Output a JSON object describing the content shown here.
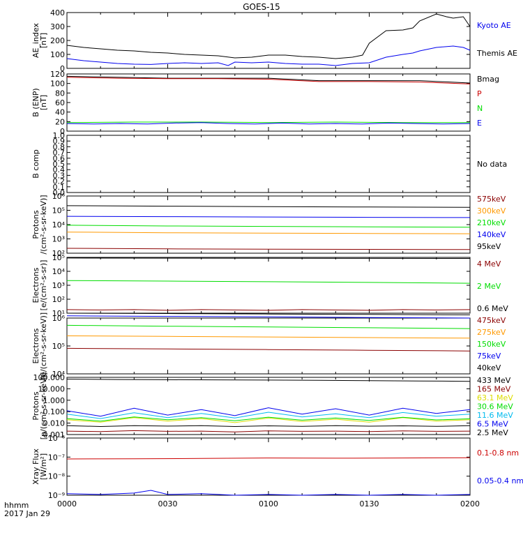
{
  "title": "GOES-15",
  "footer": {
    "time_label": "hhmm",
    "date_label": "2017 Jan 29"
  },
  "x_axis": {
    "min_min": 0,
    "max_min": 120,
    "ticks": [
      {
        "min": 0,
        "label": "0000"
      },
      {
        "min": 30,
        "label": "0030"
      },
      {
        "min": 60,
        "label": "0100"
      },
      {
        "min": 90,
        "label": "0130"
      },
      {
        "min": 120,
        "label": "0200"
      }
    ]
  },
  "colors": {
    "black": "#000000",
    "red": "#cc0000",
    "darkred": "#8b0000",
    "green": "#00dd00",
    "blue": "#0000ee",
    "orange": "#ff9900",
    "yellow": "#dddd00",
    "cyan": "#00bbee",
    "purple": "#8800aa"
  },
  "chart_data": [
    {
      "type": "line",
      "id": "ae",
      "ylabel": [
        "AE_index",
        "[nT]"
      ],
      "scale": "linear",
      "ylim": [
        0,
        400
      ],
      "yticks": [
        {
          "v": 0,
          "label": "0"
        },
        {
          "v": 100,
          "label": "100"
        },
        {
          "v": 200,
          "label": "200"
        },
        {
          "v": 300,
          "label": "300"
        },
        {
          "v": 400,
          "label": "400"
        }
      ],
      "series": [
        {
          "name": "Kyoto AE",
          "color": "#0000ee",
          "x": [
            0,
            5,
            10,
            15,
            20,
            25,
            30,
            35,
            40,
            45,
            48,
            50,
            55,
            60,
            65,
            70,
            75,
            80,
            85,
            90,
            95,
            100,
            103,
            105,
            110,
            115,
            118,
            120
          ],
          "y": [
            70,
            55,
            45,
            35,
            30,
            28,
            35,
            40,
            35,
            40,
            20,
            45,
            40,
            45,
            35,
            30,
            30,
            20,
            35,
            40,
            80,
            100,
            110,
            125,
            150,
            160,
            150,
            130
          ]
        },
        {
          "name": "Themis AE",
          "color": "#000000",
          "x": [
            0,
            5,
            10,
            15,
            20,
            25,
            30,
            35,
            40,
            45,
            50,
            55,
            60,
            65,
            70,
            75,
            80,
            85,
            88,
            90,
            95,
            100,
            103,
            105,
            110,
            113,
            115,
            118,
            120
          ],
          "y": [
            165,
            150,
            140,
            130,
            125,
            115,
            110,
            100,
            95,
            90,
            75,
            80,
            95,
            95,
            85,
            80,
            70,
            80,
            95,
            180,
            270,
            275,
            290,
            340,
            390,
            370,
            360,
            370,
            300
          ]
        }
      ]
    },
    {
      "type": "line",
      "id": "b_enp",
      "ylabel": [
        "B (ENP)",
        "[nT]"
      ],
      "scale": "linear",
      "ylim": [
        0,
        120
      ],
      "yticks": [
        {
          "v": 0,
          "label": "0"
        },
        {
          "v": 20,
          "label": "20"
        },
        {
          "v": 40,
          "label": "40"
        },
        {
          "v": 60,
          "label": "60"
        },
        {
          "v": 80,
          "label": "80"
        },
        {
          "v": 100,
          "label": "100"
        },
        {
          "v": 120,
          "label": "120"
        }
      ],
      "series": [
        {
          "name": "Bmag",
          "color": "#000000",
          "x": [
            0,
            15,
            30,
            45,
            60,
            75,
            90,
            105,
            120
          ],
          "y": [
            115,
            113,
            111,
            111,
            111,
            106,
            106,
            106,
            101
          ]
        },
        {
          "name": "P",
          "color": "#cc0000",
          "x": [
            0,
            15,
            30,
            45,
            60,
            75,
            90,
            105,
            120
          ],
          "y": [
            113,
            111,
            110,
            110,
            109,
            104,
            104,
            103,
            99
          ]
        },
        {
          "name": "N",
          "color": "#00dd00",
          "x": [
            0,
            20,
            40,
            60,
            80,
            100,
            120
          ],
          "y": [
            18,
            19,
            19,
            18,
            19,
            18,
            18
          ]
        },
        {
          "name": "E",
          "color": "#0000ee",
          "x": [
            0,
            8,
            16,
            24,
            32,
            40,
            48,
            56,
            64,
            72,
            80,
            88,
            96,
            104,
            112,
            120
          ],
          "y": [
            16,
            15,
            16,
            15,
            17,
            18,
            16,
            15,
            17,
            15,
            16,
            15,
            17,
            16,
            15,
            16
          ]
        }
      ]
    },
    {
      "type": "line",
      "id": "b_comp",
      "ylabel": [
        "B comp"
      ],
      "scale": "linear",
      "ylim": [
        0,
        1
      ],
      "yticks": [
        {
          "v": 0,
          "label": "0.0"
        },
        {
          "v": 0.1,
          "label": "0.1"
        },
        {
          "v": 0.2,
          "label": "0.2"
        },
        {
          "v": 0.3,
          "label": "0.3"
        },
        {
          "v": 0.4,
          "label": "0.4"
        },
        {
          "v": 0.5,
          "label": "0.5"
        },
        {
          "v": 0.6,
          "label": "0.6"
        },
        {
          "v": 0.7,
          "label": "0.7"
        },
        {
          "v": 0.8,
          "label": "0.8"
        },
        {
          "v": 0.9,
          "label": "0.9"
        },
        {
          "v": 1,
          "label": "1.0"
        }
      ],
      "no_data": "No data",
      "series": []
    },
    {
      "type": "line",
      "id": "protons_kev",
      "ylabel": [
        "Protons",
        "/(cm²-s-sr-keV)]"
      ],
      "scale": "log",
      "ylim": [
        100,
        1000000
      ],
      "yticks": [
        {
          "v": 100,
          "label": "10²"
        },
        {
          "v": 1000,
          "label": "10³"
        },
        {
          "v": 10000,
          "label": "10⁴"
        },
        {
          "v": 100000,
          "label": "10⁵"
        },
        {
          "v": 1000000,
          "label": "10⁶"
        }
      ],
      "series": [
        {
          "name": "575keV",
          "color": "#8b0000",
          "x": [
            0,
            30,
            60,
            90,
            120
          ],
          "y": [
            220,
            200,
            190,
            185,
            180
          ]
        },
        {
          "name": "300keV",
          "color": "#ff9900",
          "x": [
            0,
            30,
            60,
            90,
            120
          ],
          "y": [
            3000,
            2700,
            2500,
            2400,
            2300
          ]
        },
        {
          "name": "210keV",
          "color": "#00dd00",
          "x": [
            0,
            30,
            60,
            90,
            120
          ],
          "y": [
            9000,
            8000,
            7500,
            7000,
            6500
          ]
        },
        {
          "name": "140keV",
          "color": "#0000ee",
          "x": [
            0,
            30,
            60,
            90,
            120
          ],
          "y": [
            38000,
            36000,
            34000,
            32000,
            31000
          ]
        },
        {
          "name": "95keV",
          "color": "#000000",
          "x": [
            0,
            30,
            60,
            90,
            120
          ],
          "y": [
            210000,
            195000,
            180000,
            170000,
            160000
          ]
        }
      ]
    },
    {
      "type": "line",
      "id": "electrons_mev",
      "ylabel": [
        "Electrons",
        "[e/(cm²-s-sr)]"
      ],
      "scale": "log",
      "ylim": [
        10,
        100000
      ],
      "yticks": [
        {
          "v": 10,
          "label": "10¹"
        },
        {
          "v": 100,
          "label": "10²"
        },
        {
          "v": 1000,
          "label": "10³"
        },
        {
          "v": 10000,
          "label": "10⁴"
        },
        {
          "v": 100000,
          "label": "10⁵"
        }
      ],
      "series": [
        {
          "name": "4 MeV",
          "color": "#8b0000",
          "x": [
            0,
            10,
            20,
            30,
            40,
            50,
            60,
            70,
            80,
            90,
            100,
            110,
            120
          ],
          "y": [
            18,
            17,
            18,
            16,
            18,
            17,
            16,
            18,
            17,
            16,
            18,
            17,
            18
          ]
        },
        {
          "name": "2 MeV",
          "color": "#00dd00",
          "x": [
            0,
            30,
            60,
            90,
            120
          ],
          "y": [
            2200,
            2000,
            1800,
            1600,
            1400
          ]
        },
        {
          "name": "0.6 MeV",
          "color": "#000000",
          "x": [
            0,
            30,
            60,
            90,
            120
          ],
          "y": [
            90000,
            88000,
            86000,
            85000,
            84000
          ]
        }
      ]
    },
    {
      "type": "line",
      "id": "electrons_kev",
      "ylabel": [
        "Electrons",
        "[e/(cm²-s-sr-keV)]"
      ],
      "scale": "log",
      "ylim": [
        10000,
        1000000
      ],
      "yticks": [
        {
          "v": 10000,
          "label": "10⁴"
        },
        {
          "v": 100000,
          "label": "10⁵"
        },
        {
          "v": 1000000,
          "label": "10⁶"
        }
      ],
      "series": [
        {
          "name": "475keV",
          "color": "#8b0000",
          "x": [
            0,
            30,
            60,
            90,
            120
          ],
          "y": [
            82000,
            78000,
            74000,
            70000,
            66000
          ]
        },
        {
          "name": "275keV",
          "color": "#ff9900",
          "x": [
            0,
            30,
            60,
            90,
            120
          ],
          "y": [
            230000,
            220000,
            210000,
            200000,
            190000
          ]
        },
        {
          "name": "150keV",
          "color": "#00dd00",
          "x": [
            0,
            30,
            60,
            90,
            120
          ],
          "y": [
            550000,
            510000,
            480000,
            450000,
            420000
          ]
        },
        {
          "name": "75keV",
          "color": "#0000ee",
          "x": [
            0,
            30,
            60,
            90,
            120
          ],
          "y": [
            1200000,
            1150000,
            1100000,
            1050000,
            1000000
          ]
        },
        {
          "name": "40keV",
          "color": "#000000",
          "x": [
            0,
            30,
            60,
            90,
            120
          ],
          "y": [
            1500000,
            1450000,
            1400000,
            1350000,
            1300000
          ]
        }
      ]
    },
    {
      "type": "line",
      "id": "protons_mev",
      "ylabel": [
        "Protons",
        "[p/(cm²-s-sr-keV)]"
      ],
      "scale": "log",
      "ylim": [
        0.001,
        100
      ],
      "yticks": [
        {
          "v": 0.001,
          "label": "0.001"
        },
        {
          "v": 0.01,
          "label": "0.010"
        },
        {
          "v": 0.1,
          "label": "0.100"
        },
        {
          "v": 1,
          "label": "1.000"
        },
        {
          "v": 10,
          "label": "10.000"
        },
        {
          "v": 100,
          "label": "100.000"
        }
      ],
      "series": [
        {
          "name": "433 MeV",
          "color": "#000000",
          "x": [
            0,
            15,
            30,
            45,
            60,
            75,
            90,
            105,
            120
          ],
          "y": [
            70,
            65,
            62,
            60,
            58,
            55,
            52,
            48,
            45
          ]
        },
        {
          "name": "165 MeV",
          "color": "#8b0000",
          "x": [
            0,
            10,
            20,
            30,
            40,
            50,
            60,
            70,
            80,
            90,
            100,
            110,
            120
          ],
          "y": [
            0.002,
            0.0018,
            0.0022,
            0.0019,
            0.002,
            0.0017,
            0.0021,
            0.0019,
            0.002,
            0.0018,
            0.0021,
            0.0019,
            0.002
          ]
        },
        {
          "name": "63.1 MeV",
          "color": "#dddd00",
          "x": [
            0,
            10,
            20,
            30,
            40,
            50,
            60,
            70,
            80,
            90,
            100,
            110,
            120
          ],
          "y": [
            0.02,
            0.012,
            0.03,
            0.015,
            0.025,
            0.011,
            0.028,
            0.014,
            0.022,
            0.012,
            0.03,
            0.015,
            0.02
          ]
        },
        {
          "name": "30.6 MeV",
          "color": "#00dd00",
          "x": [
            0,
            10,
            20,
            30,
            40,
            50,
            60,
            70,
            80,
            90,
            100,
            110,
            120
          ],
          "y": [
            0.025,
            0.015,
            0.035,
            0.02,
            0.03,
            0.016,
            0.033,
            0.018,
            0.028,
            0.017,
            0.032,
            0.019,
            0.024
          ]
        },
        {
          "name": "11.6 MeV",
          "color": "#00bbee",
          "x": [
            0,
            10,
            20,
            30,
            40,
            50,
            60,
            70,
            80,
            90,
            100,
            110,
            120
          ],
          "y": [
            0.06,
            0.025,
            0.08,
            0.03,
            0.07,
            0.028,
            0.09,
            0.035,
            0.065,
            0.03,
            0.085,
            0.04,
            0.06
          ]
        },
        {
          "name": "6.5 MeV",
          "color": "#0000ee",
          "x": [
            0,
            10,
            20,
            30,
            40,
            50,
            60,
            70,
            80,
            90,
            100,
            110,
            120
          ],
          "y": [
            0.12,
            0.04,
            0.2,
            0.05,
            0.15,
            0.045,
            0.22,
            0.06,
            0.18,
            0.05,
            0.2,
            0.07,
            0.15
          ]
        },
        {
          "name": "2.5 MeV",
          "color": "#000000",
          "x": [
            0,
            10,
            20,
            30,
            40,
            50,
            60,
            70,
            80,
            90,
            100,
            110,
            120
          ],
          "y": [
            0.006,
            0.005,
            0.006,
            0.0055,
            0.006,
            0.005,
            0.0058,
            0.0052,
            0.006,
            0.0054,
            0.0058,
            0.0052,
            0.006
          ]
        }
      ]
    },
    {
      "type": "line",
      "id": "xray",
      "ylabel": [
        "Xray Flux",
        "[W/m²]"
      ],
      "scale": "log",
      "ylim": [
        1e-09,
        1e-06
      ],
      "yticks": [
        {
          "v": 1e-09,
          "label": "10⁻⁹"
        },
        {
          "v": 1e-08,
          "label": "10⁻⁸"
        },
        {
          "v": 1e-07,
          "label": "10⁻⁷"
        },
        {
          "v": 1e-06,
          "label": "10⁻⁶"
        }
      ],
      "series": [
        {
          "name": "0.1-0.8 nm",
          "color": "#cc0000",
          "x": [
            0,
            20,
            40,
            60,
            80,
            100,
            120
          ],
          "y": [
            8e-08,
            8.2e-08,
            8.5e-08,
            9e-08,
            8.8e-08,
            9e-08,
            9.2e-08
          ]
        },
        {
          "name": "0.05-0.4 nm",
          "color": "#0000ee",
          "x": [
            0,
            10,
            20,
            25,
            30,
            40,
            50,
            60,
            70,
            80,
            90,
            100,
            110,
            120
          ],
          "y": [
            1.2e-09,
            1.1e-09,
            1.3e-09,
            1.8e-09,
            1.1e-09,
            1.2e-09,
            1e-09,
            1.1e-09,
            1e-09,
            1.1e-09,
            1e-09,
            1.1e-09,
            1e-09,
            1.1e-09
          ]
        }
      ]
    }
  ]
}
